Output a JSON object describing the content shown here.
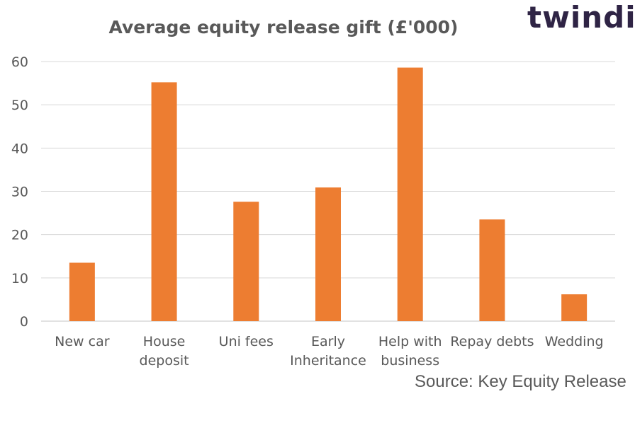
{
  "brand": {
    "logo_text": "twindig"
  },
  "source": {
    "text": "Source: Key Equity Release"
  },
  "chart_data": {
    "type": "bar",
    "title": "Average equity release gift (£'000)",
    "categories": [
      "New car",
      "House deposit",
      "Uni fees",
      "Early Inheritance",
      "Help with business",
      "Repay debts",
      "Wedding"
    ],
    "category_lines": [
      [
        "New car"
      ],
      [
        "House",
        "deposit"
      ],
      [
        "Uni fees"
      ],
      [
        "Early",
        "Inheritance"
      ],
      [
        "Help with",
        "business"
      ],
      [
        "Repay debts"
      ],
      [
        "Wedding"
      ]
    ],
    "values": [
      13.5,
      55.2,
      27.6,
      30.9,
      58.6,
      23.5,
      6.2
    ],
    "ylim": [
      0,
      60
    ],
    "yticks": [
      0,
      10,
      20,
      30,
      40,
      50,
      60
    ],
    "xlabel": "",
    "ylabel": "",
    "grid": true,
    "bar_color": "#ed7d31",
    "grid_color": "#d9d9d9"
  }
}
